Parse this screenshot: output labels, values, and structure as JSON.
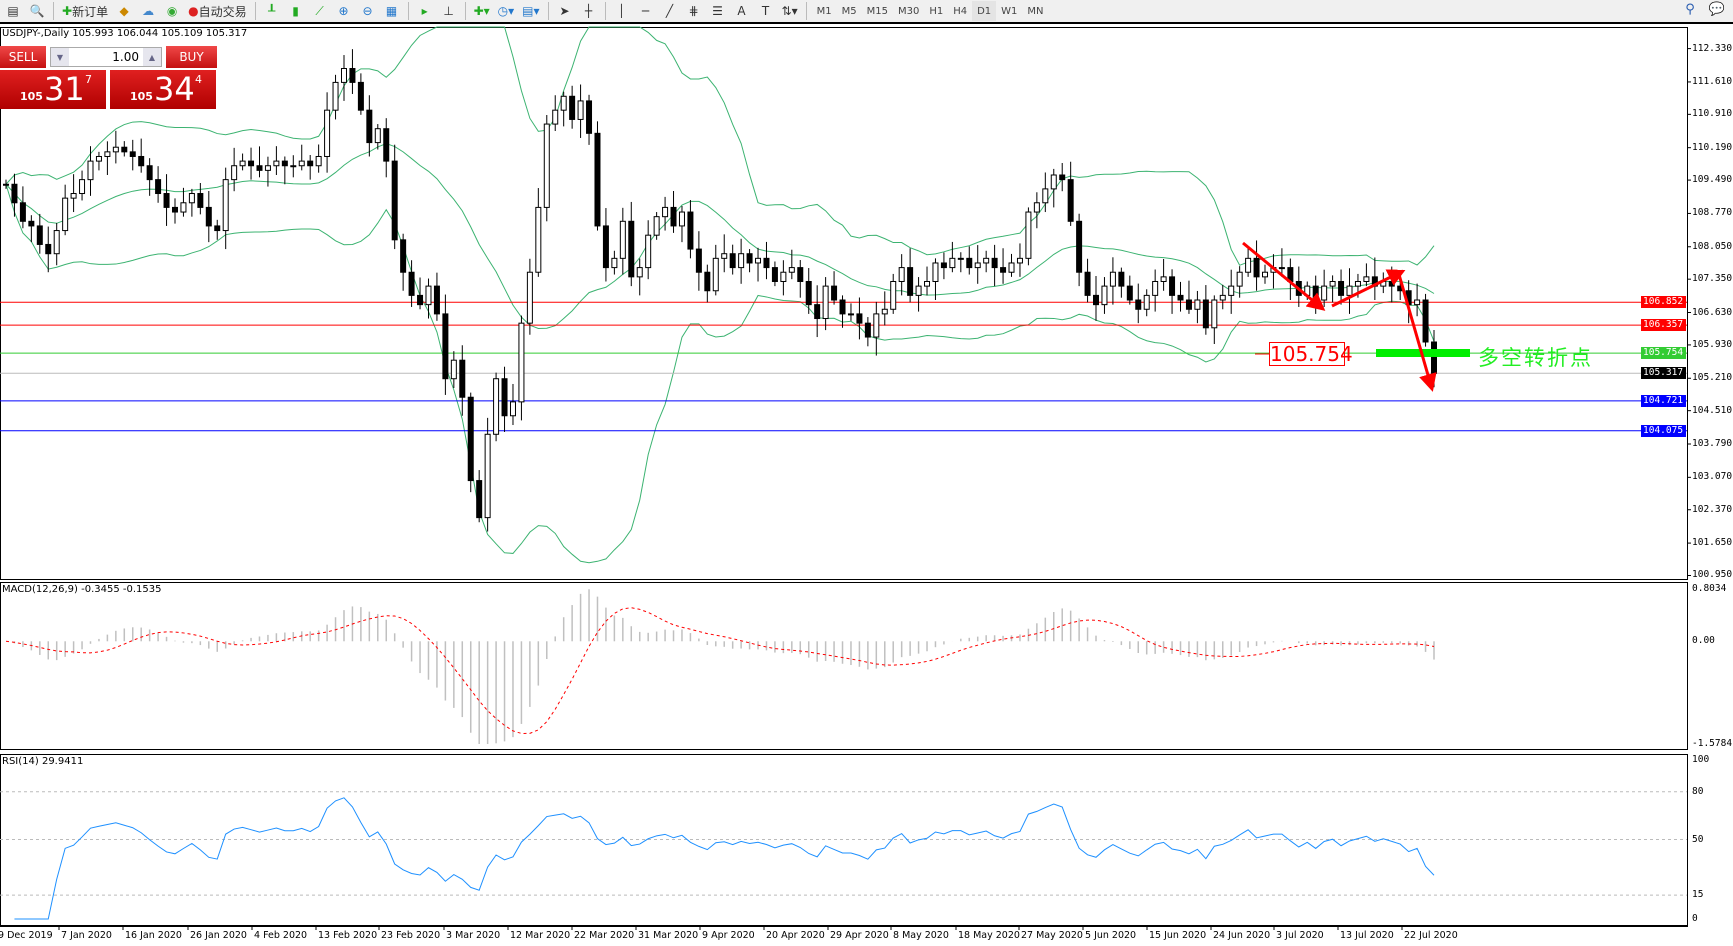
{
  "toolbar": {
    "new_order": "新订单",
    "auto_trading": "自动交易",
    "icons": [
      "new-chart-icon",
      "profiles-icon",
      "new-order-icon",
      "metaeditor-icon",
      "navigator-icon",
      "signals-icon",
      "auto-trading-icon",
      "bar-chart-icon",
      "candlestick-icon",
      "line-chart-icon",
      "zoom-in-icon",
      "zoom-out-icon",
      "tile-windows-icon",
      "auto-scroll-icon",
      "chart-shift-icon",
      "indicators-icon",
      "periods-icon",
      "templates-icon",
      "cursor-icon",
      "crosshair-icon",
      "vertical-line-icon",
      "horizontal-line-icon",
      "trendline-icon",
      "fibonacci-icon",
      "text-icon",
      "text-label-icon",
      "arrows-icon"
    ],
    "timeframes": [
      "M1",
      "M5",
      "M15",
      "M30",
      "H1",
      "H4",
      "D1",
      "W1",
      "MN"
    ],
    "active_timeframe": "D1"
  },
  "chart": {
    "symbol_line": "USDJPY-,Daily  105.993 106.044 105.109 105.317",
    "price_ticks": [
      "112.330",
      "111.610",
      "110.910",
      "110.190",
      "109.490",
      "108.770",
      "108.050",
      "107.350",
      "106.630",
      "105.930",
      "105.210",
      "104.510",
      "103.790",
      "103.070",
      "102.370",
      "101.650",
      "100.950"
    ],
    "levels": [
      {
        "value": "106.852",
        "color": "#ff0000"
      },
      {
        "value": "106.357",
        "color": "#ff0000"
      },
      {
        "value": "105.754",
        "color": "#33cc33"
      },
      {
        "value": "105.317",
        "color": "#000000"
      },
      {
        "value": "104.721",
        "color": "#0000ff"
      },
      {
        "value": "104.075",
        "color": "#0000ff"
      }
    ],
    "annotation_price": "105.754",
    "annotation_text": "多空转折点",
    "bollinger_color": "#3cb371",
    "arrow_color": "#ff0000",
    "closes": [
      109.4,
      109.0,
      108.6,
      108.5,
      108.1,
      107.9,
      108.4,
      109.1,
      109.2,
      109.5,
      109.9,
      110.0,
      110.1,
      110.2,
      110.1,
      110.0,
      109.8,
      109.5,
      109.2,
      108.9,
      108.8,
      109.0,
      109.2,
      108.9,
      108.5,
      108.4,
      109.5,
      109.8,
      109.9,
      109.8,
      109.7,
      109.8,
      109.9,
      109.8,
      109.8,
      109.9,
      109.8,
      110.0,
      111.0,
      111.6,
      111.9,
      111.6,
      111.0,
      110.3,
      110.6,
      109.9,
      108.2,
      107.5,
      107.0,
      106.8,
      107.2,
      106.6,
      105.2,
      105.6,
      104.8,
      103.0,
      102.2,
      104.0,
      105.2,
      104.4,
      104.7,
      106.4,
      107.5,
      108.9,
      110.7,
      111.0,
      111.3,
      110.8,
      111.2,
      110.5,
      108.5,
      107.6,
      107.8,
      108.6,
      107.4,
      107.6,
      108.3,
      108.7,
      108.9,
      108.5,
      108.8,
      108.0,
      107.5,
      107.1,
      107.8,
      107.9,
      107.6,
      107.9,
      107.7,
      107.8,
      107.6,
      107.3,
      107.5,
      107.6,
      107.3,
      106.8,
      106.5,
      107.2,
      106.9,
      106.6,
      106.6,
      106.4,
      106.1,
      106.6,
      106.7,
      107.3,
      107.6,
      107.0,
      107.2,
      107.3,
      107.7,
      107.6,
      107.8,
      107.8,
      107.6,
      107.7,
      107.8,
      107.6,
      107.5,
      107.7,
      107.8,
      108.8,
      109.0,
      109.3,
      109.6,
      109.5,
      108.6,
      107.5,
      107.0,
      106.8,
      107.2,
      107.5,
      107.2,
      106.9,
      106.7,
      107.0,
      107.3,
      107.4,
      107.0,
      106.9,
      106.7,
      106.9,
      106.3,
      106.9,
      107.0,
      107.2,
      107.5,
      107.8,
      107.4,
      107.5,
      107.6,
      107.6,
      107.3,
      107.0,
      107.2,
      106.9,
      107.2,
      107.3,
      107.0,
      107.2,
      107.3,
      107.4,
      107.2,
      107.3,
      107.2,
      107.1,
      106.8,
      106.9,
      105.993,
      105.317
    ]
  },
  "macd": {
    "label": "MACD(12,26,9) -0.3455 -0.1535",
    "ticks": [
      "0.8034",
      "0.00",
      "-1.5784"
    ],
    "signal_color": "#ff0000"
  },
  "rsi": {
    "label": "RSI(14) 29.9411",
    "ticks": [
      "100",
      "80",
      "50",
      "15",
      "0"
    ],
    "line_color": "#1e90ff"
  },
  "time_labels": [
    "9 Dec 2019",
    "7 Jan 2020",
    "16 Jan 2020",
    "26 Jan 2020",
    "4 Feb 2020",
    "13 Feb 2020",
    "23 Feb 2020",
    "3 Mar 2020",
    "12 Mar 2020",
    "22 Mar 2020",
    "31 Mar 2020",
    "9 Apr 2020",
    "20 Apr 2020",
    "29 Apr 2020",
    "8 May 2020",
    "18 May 2020",
    "27 May 2020",
    "5 Jun 2020",
    "15 Jun 2020",
    "24 Jun 2020",
    "3 Jul 2020",
    "13 Jul 2020",
    "22 Jul 2020"
  ],
  "trade": {
    "sell": "SELL",
    "buy": "BUY",
    "lot": "1.00",
    "sell_big": "105",
    "sell_mid": "31",
    "sell_sup": "7",
    "buy_big": "105",
    "buy_mid": "34",
    "buy_sup": "4"
  }
}
